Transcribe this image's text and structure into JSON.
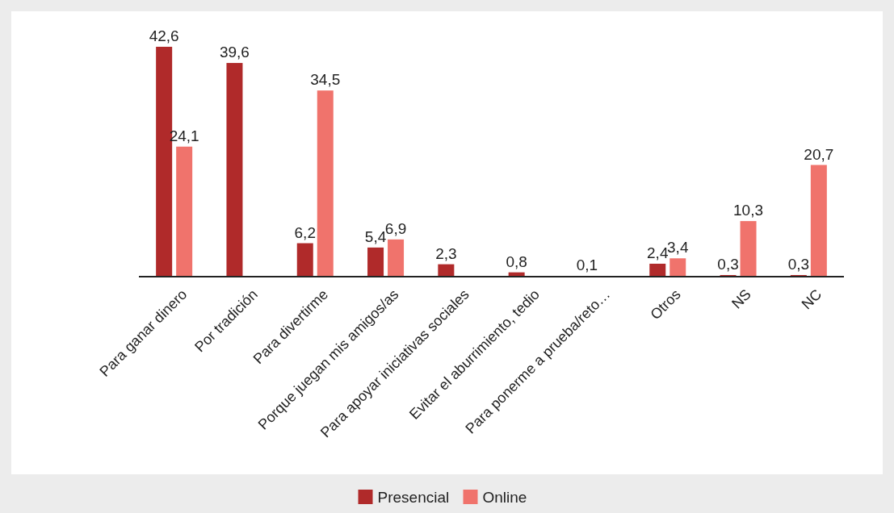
{
  "chart_data": {
    "type": "bar",
    "categories": [
      "Para ganar dinero",
      "Por tradición",
      "Para divertirme",
      "Porque juegan mis amigos/as",
      "Para apoyar iniciativas sociales",
      "Evitar el aburrimiento, tedio",
      "Para ponerme a prueba/reto…",
      "Otros",
      "NS",
      "NC"
    ],
    "series": [
      {
        "name": "Presencial",
        "color": "#b02a2a",
        "values": [
          42.6,
          39.6,
          6.2,
          5.4,
          2.3,
          0.8,
          0.1,
          2.4,
          0.3,
          0.3
        ],
        "value_labels": [
          "42,6",
          "39,6",
          "6,2",
          "5,4",
          "2,3",
          "0,8",
          "0,1",
          "2,4",
          "0,3",
          "0,3"
        ]
      },
      {
        "name": "Online",
        "color": "#f0736c",
        "values": [
          24.1,
          null,
          34.5,
          6.9,
          null,
          null,
          null,
          3.4,
          10.3,
          20.7
        ],
        "value_labels": [
          "24,1",
          null,
          "34,5",
          "6,9",
          null,
          null,
          null,
          "3,4",
          "10,3",
          "20,7"
        ]
      }
    ],
    "legend": "bottom"
  }
}
